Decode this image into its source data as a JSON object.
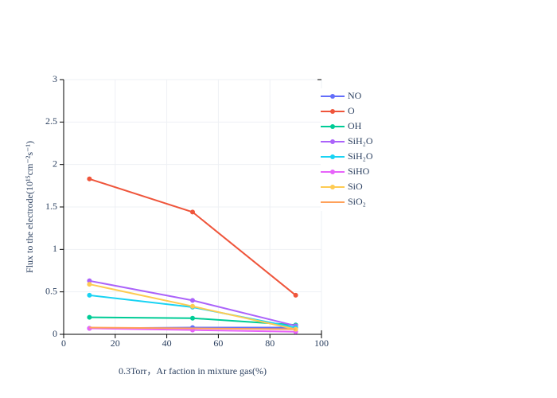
{
  "chart_data": {
    "type": "line",
    "x_label": "0.3Torr，Ar faction in mixture gas(%)",
    "y_label": "Flux to the electrode(10¹⁵cm⁻²s⁻¹)",
    "x": [
      10,
      50,
      90
    ],
    "xlim": [
      0,
      100
    ],
    "xticks": [
      0,
      20,
      40,
      60,
      80,
      100
    ],
    "ylim": [
      0,
      3
    ],
    "yticks": [
      0,
      0.5,
      1,
      1.5,
      2,
      2.5,
      3
    ],
    "grid": true,
    "legend": "right",
    "series": [
      {
        "name": "NO",
        "color": "#636efa",
        "markers": true,
        "values": [
          0.07,
          0.08,
          0.08
        ]
      },
      {
        "name": "O",
        "color": "#ef553b",
        "markers": true,
        "values": [
          1.83,
          1.44,
          0.46
        ]
      },
      {
        "name": "OH",
        "color": "#00cc96",
        "markers": true,
        "values": [
          0.2,
          0.19,
          0.11
        ]
      },
      {
        "name": "SiH₂O",
        "color": "#ab63fa",
        "markers": true,
        "values": [
          0.63,
          0.4,
          0.1
        ]
      },
      {
        "name": "SiH₂O",
        "color": "#19d3f3",
        "markers": true,
        "values": [
          0.46,
          0.32,
          0.08
        ]
      },
      {
        "name": "SiHO",
        "color": "#e763fa",
        "markers": true,
        "values": [
          0.07,
          0.05,
          0.03
        ]
      },
      {
        "name": "SiO",
        "color": "#fecb52",
        "markers": true,
        "values": [
          0.59,
          0.33,
          0.06
        ]
      },
      {
        "name": "SiO₂",
        "color": "#ffa15a",
        "markers": false,
        "values": [
          0.08,
          0.07,
          0.06
        ]
      }
    ]
  }
}
